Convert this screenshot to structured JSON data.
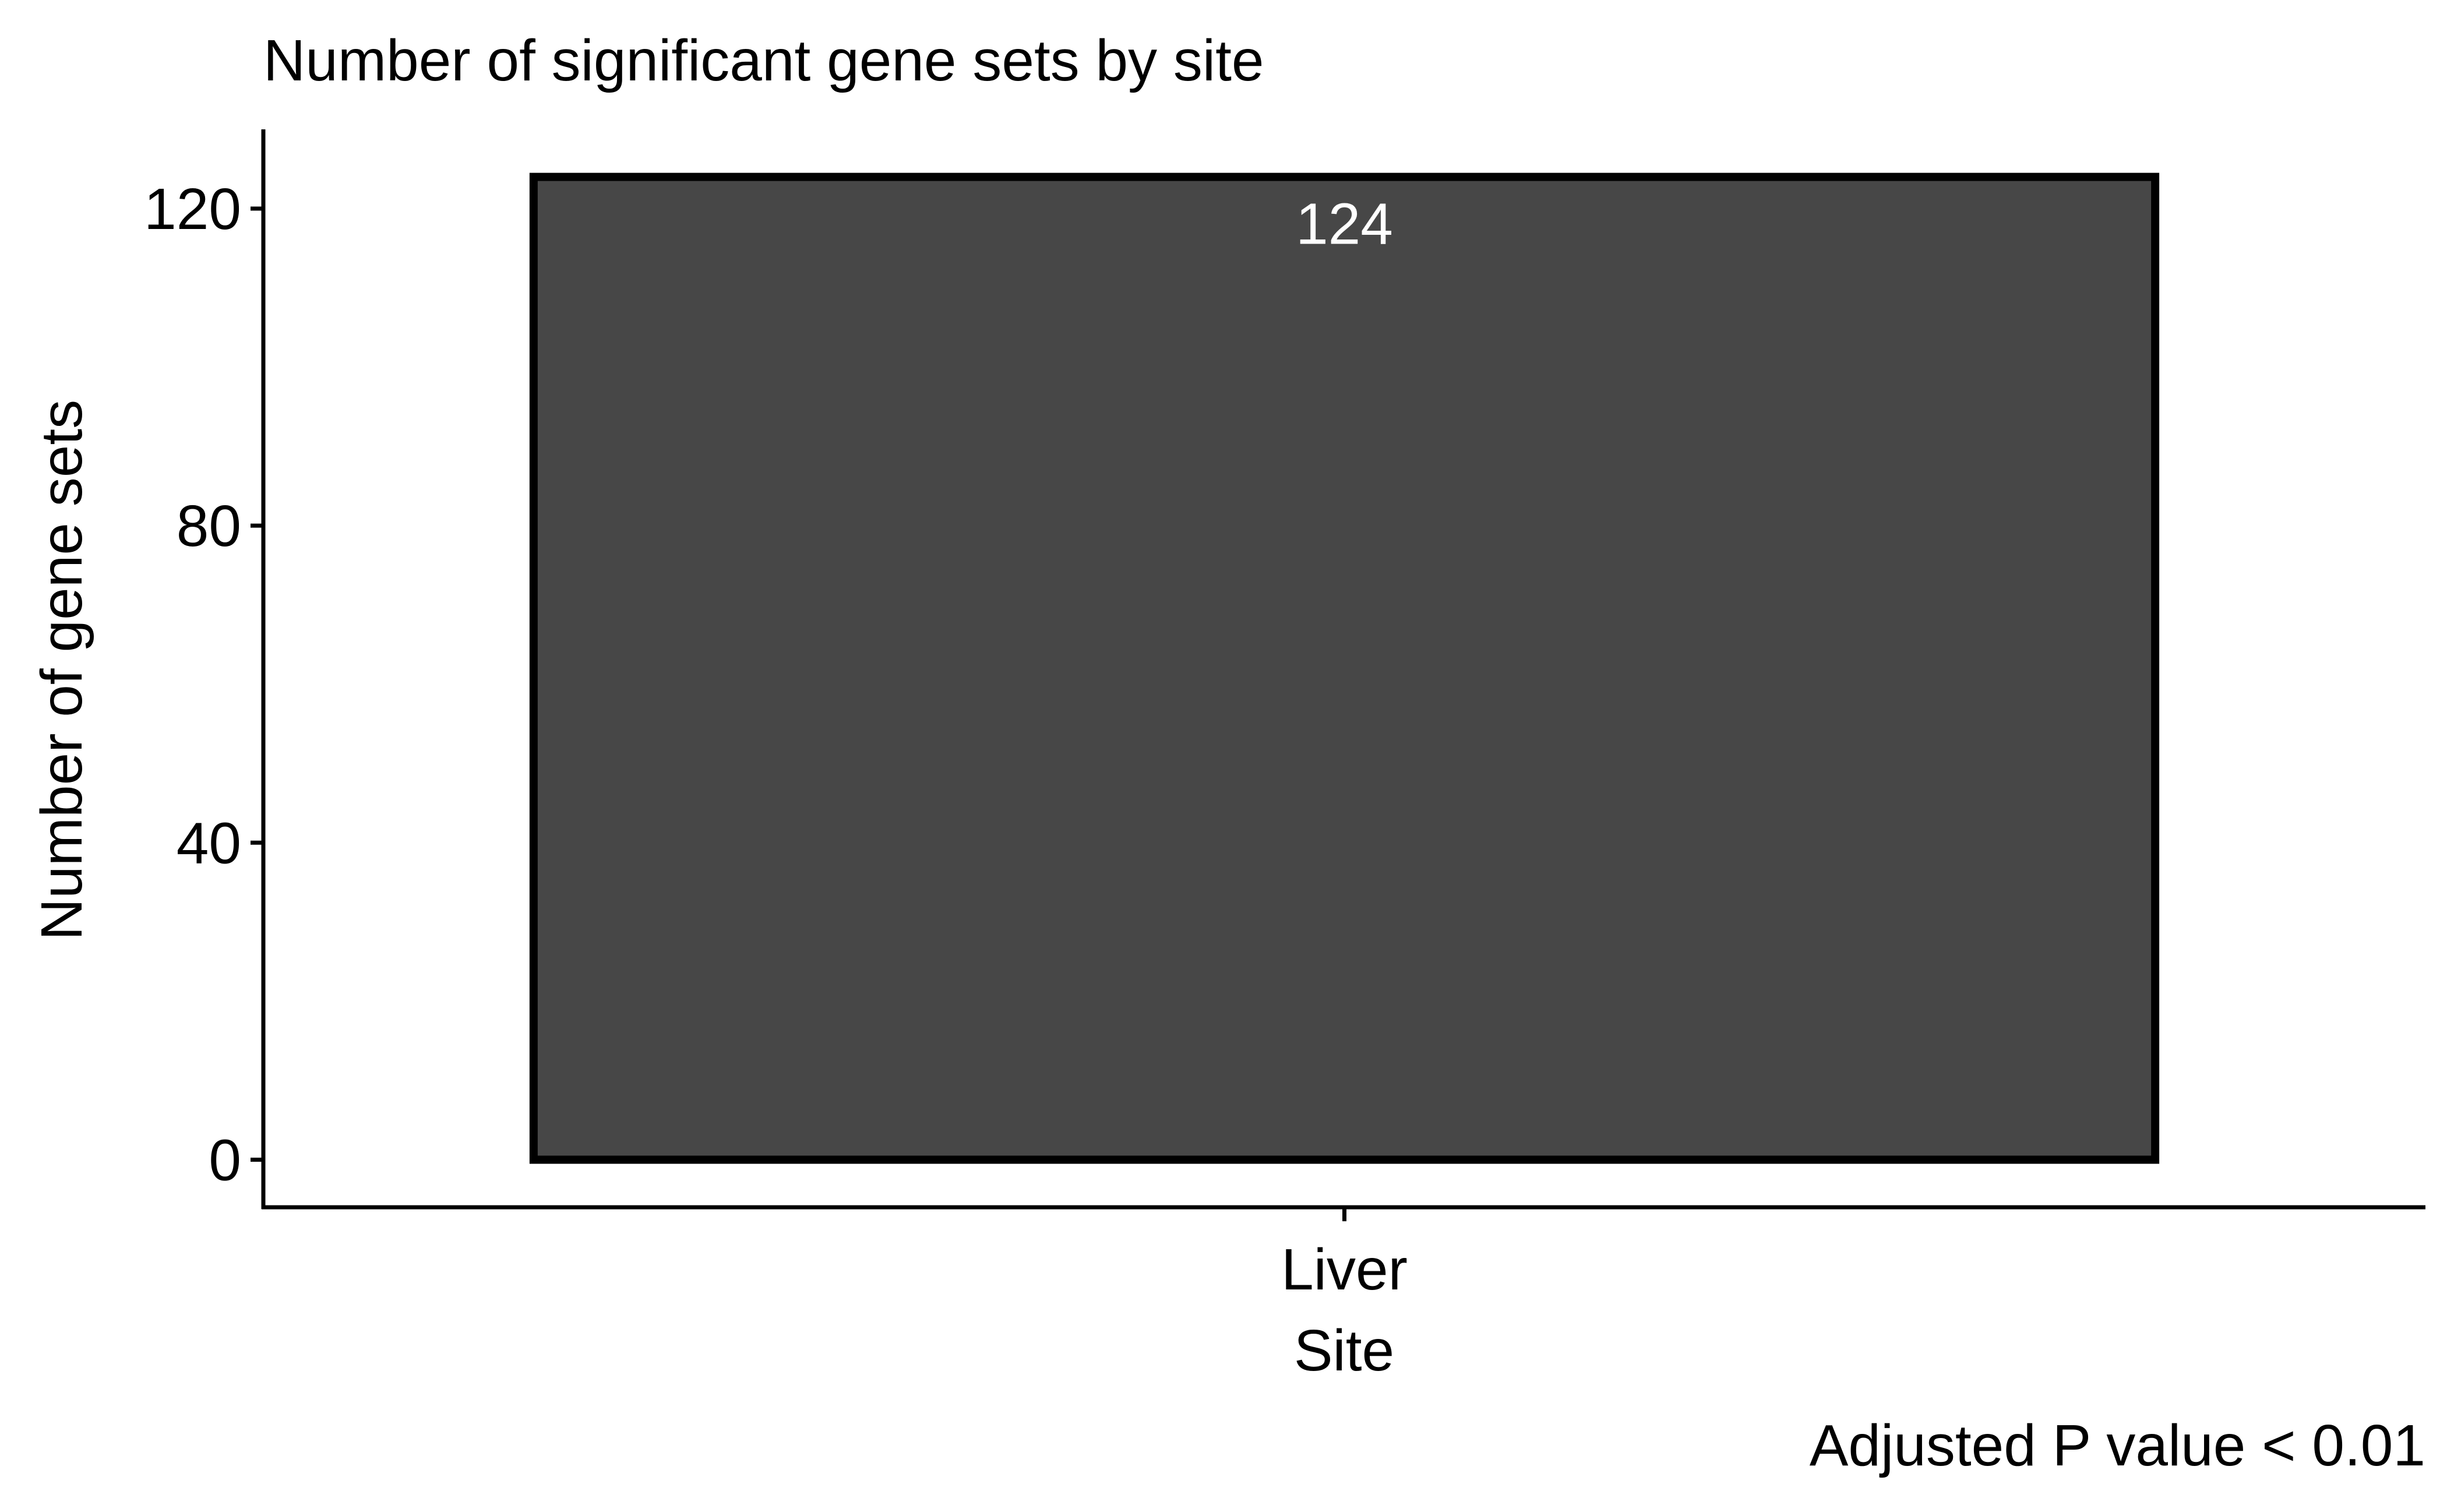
{
  "chart_data": {
    "type": "bar",
    "title": "Number of significant gene sets by site",
    "xlabel": "Site",
    "ylabel": "Number of gene sets",
    "caption": "Adjusted P value < 0.01",
    "categories": [
      "Liver"
    ],
    "values": [
      124
    ],
    "data_labels": [
      "124"
    ],
    "ylim": [
      -6,
      130
    ],
    "yticks": [
      0,
      40,
      80,
      120
    ],
    "grid": false,
    "legend": "none",
    "colors": {
      "bar_fill": "#474747",
      "bar_outline": "#000000",
      "label": "#ffffff"
    }
  }
}
